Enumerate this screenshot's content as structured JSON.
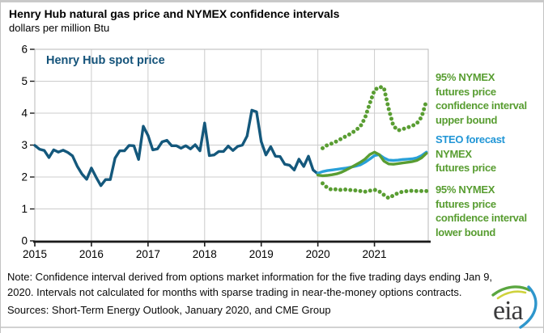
{
  "header": {
    "title": "Henry Hub natural gas price and NYMEX confidence intervals",
    "units": "dollars per million Btu"
  },
  "annotation": {
    "spot_label": "Henry Hub spot price"
  },
  "legend": {
    "upper": {
      "lines": [
        "95% NYMEX",
        "futures price",
        "confidence interval",
        "upper bound"
      ],
      "color": "#589d31"
    },
    "steo": {
      "line1": "STEO forecast",
      "line2": "NYMEX",
      "line3": "futures price",
      "line1_color": "#2196d6",
      "rest_color": "#589d31"
    },
    "lower": {
      "lines": [
        "95% NYMEX",
        "futures price",
        "confidence interval",
        "lower bound"
      ],
      "color": "#589d31"
    }
  },
  "footer": {
    "note_line1": "Note: Confidence interval derived from options market information for the five trading days ending Jan 9,",
    "note_line2": "2020. Intervals not calculated for months with sparse trading in near-the-money options contracts.",
    "sources": "Sources: Short-Term Energy Outlook, January 2020, and CME Group",
    "logo_text": "eia"
  },
  "chart_data": {
    "type": "line",
    "title": "Henry Hub natural gas price and NYMEX confidence intervals",
    "ylabel": "dollars per million Btu",
    "xlabel": "",
    "grid": true,
    "legend_position": "right",
    "xlim": [
      2015,
      2021.95
    ],
    "ylim": [
      0,
      6
    ],
    "x_ticks": [
      "2015",
      "2016",
      "2017",
      "2018",
      "2019",
      "2020",
      "2021"
    ],
    "x_tick_values": [
      2015,
      2016,
      2017,
      2018,
      2019,
      2020,
      2021
    ],
    "y_ticks": [
      "0",
      "1",
      "2",
      "3",
      "4",
      "5",
      "6"
    ],
    "y_tick_values": [
      0,
      1,
      2,
      3,
      4,
      5,
      6
    ],
    "colors": {
      "spot": "#14587c",
      "steo": "#29a0d8",
      "nymex": "#599d32",
      "grid": "#cccccc",
      "frame": "#b9b9b9",
      "axis": "#1a1a1a"
    },
    "series": [
      {
        "id": "henry-hub-spot",
        "name": "Henry Hub spot price",
        "style": "solid",
        "color_key": "spot",
        "start_x": 2015.0,
        "step_months": 1,
        "values": [
          2.99,
          2.87,
          2.83,
          2.61,
          2.85,
          2.78,
          2.84,
          2.77,
          2.66,
          2.34,
          2.09,
          1.93,
          2.28,
          1.99,
          1.73,
          1.92,
          1.92,
          2.59,
          2.82,
          2.82,
          2.99,
          2.98,
          2.55,
          3.59,
          3.3,
          2.85,
          2.88,
          3.1,
          3.15,
          2.98,
          2.98,
          2.9,
          2.98,
          2.88,
          3.01,
          2.82,
          3.69,
          2.67,
          2.69,
          2.8,
          2.8,
          2.97,
          2.83,
          2.96,
          3.0,
          3.28,
          4.09,
          4.04,
          3.11,
          2.69,
          2.95,
          2.65,
          2.64,
          2.4,
          2.37,
          2.22,
          2.56,
          2.33,
          2.65,
          2.22,
          2.1
        ]
      },
      {
        "id": "steo-forecast",
        "name": "STEO forecast",
        "style": "solid",
        "color_key": "steo",
        "start_x": 2020.0,
        "step_months": 1,
        "values": [
          2.12,
          2.17,
          2.2,
          2.22,
          2.24,
          2.26,
          2.28,
          2.31,
          2.34,
          2.38,
          2.46,
          2.56,
          2.67,
          2.7,
          2.6,
          2.53,
          2.52,
          2.53,
          2.55,
          2.56,
          2.57,
          2.6,
          2.67,
          2.78
        ]
      },
      {
        "id": "nymex-futures",
        "name": "NYMEX futures price",
        "style": "solid",
        "color_key": "nymex",
        "start_x": 2020.0,
        "step_months": 1,
        "values": [
          2.06,
          2.04,
          2.05,
          2.07,
          2.1,
          2.15,
          2.22,
          2.3,
          2.38,
          2.46,
          2.56,
          2.7,
          2.78,
          2.7,
          2.5,
          2.41,
          2.4,
          2.42,
          2.44,
          2.46,
          2.48,
          2.52,
          2.6,
          2.74
        ]
      },
      {
        "id": "confidence-upper",
        "name": "95% NYMEX futures price confidence interval upper bound",
        "style": "dotted",
        "color_key": "nymex",
        "start_x": 2020.0833,
        "step_months": 1,
        "values": [
          2.9,
          3.0,
          3.05,
          3.12,
          3.2,
          3.28,
          3.36,
          3.46,
          3.58,
          3.85,
          4.3,
          4.72,
          4.82,
          4.8,
          4.15,
          3.6,
          3.46,
          3.5,
          3.55,
          3.6,
          3.68,
          3.88,
          4.38
        ]
      },
      {
        "id": "confidence-lower",
        "name": "95% NYMEX futures price confidence interval lower bound",
        "style": "dotted",
        "color_key": "nymex",
        "start_x": 2020.0833,
        "step_months": 1,
        "values": [
          1.8,
          1.66,
          1.6,
          1.62,
          1.59,
          1.61,
          1.59,
          1.58,
          1.56,
          1.54,
          1.57,
          1.6,
          1.55,
          1.44,
          1.34,
          1.42,
          1.5,
          1.54,
          1.56,
          1.57,
          1.56,
          1.56,
          1.56
        ]
      }
    ]
  }
}
